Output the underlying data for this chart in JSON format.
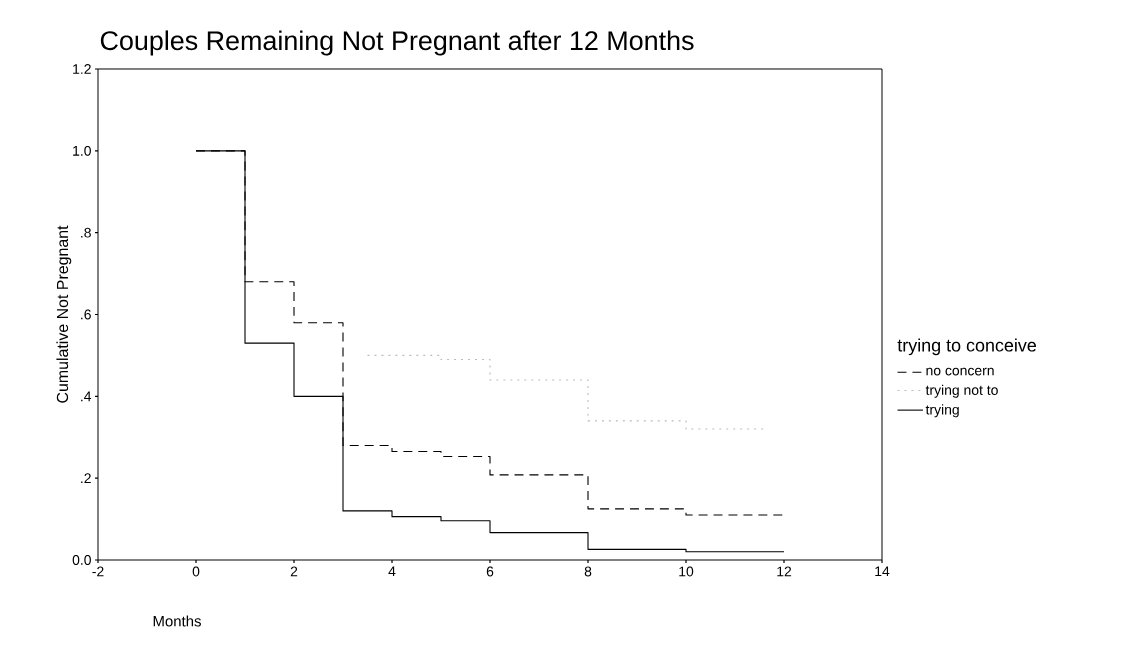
{
  "chart_data": {
    "type": "step",
    "title": "Couples Remaining Not Pregnant after 12 Months",
    "xlabel": "Months",
    "ylabel": "Cumulative Not Pregnant",
    "legend_title": "trying to conceive",
    "xlim": [
      -2,
      14
    ],
    "xticks": [
      -2,
      0,
      2,
      4,
      6,
      8,
      10,
      12,
      14
    ],
    "ylim": [
      0,
      1.2
    ],
    "yticks": [
      {
        "value": 0,
        "label": "0.0"
      },
      {
        "value": 0.2,
        "label": ".2"
      },
      {
        "value": 0.4,
        "label": ".4"
      },
      {
        "value": 0.6,
        "label": ".6"
      },
      {
        "value": 0.8,
        "label": ".8"
      },
      {
        "value": 1.0,
        "label": "1.0"
      },
      {
        "value": 1.2,
        "label": "1.2"
      }
    ],
    "legend": "right",
    "grid": false,
    "series": [
      {
        "name": "no concern",
        "color": "#000000",
        "line_style": "dashed",
        "x": [
          0,
          1,
          2,
          3,
          4,
          5,
          6,
          8,
          10,
          12
        ],
        "values": [
          1.0,
          0.68,
          0.58,
          0.28,
          0.265,
          0.253,
          0.208,
          0.125,
          0.11,
          0.11
        ]
      },
      {
        "name": "trying not to",
        "color": "#bbbbbb",
        "line_style": "dotted",
        "x": [
          3.5,
          5,
          6,
          8,
          10,
          11.6
        ],
        "values": [
          0.5,
          0.49,
          0.44,
          0.34,
          0.32,
          0.32
        ]
      },
      {
        "name": "trying",
        "color": "#000000",
        "line_style": "solid",
        "x": [
          0,
          1,
          2,
          3,
          4,
          5,
          6,
          8,
          10,
          12
        ],
        "values": [
          1.0,
          0.53,
          0.4,
          0.12,
          0.106,
          0.096,
          0.067,
          0.026,
          0.02,
          0.02
        ]
      }
    ]
  }
}
